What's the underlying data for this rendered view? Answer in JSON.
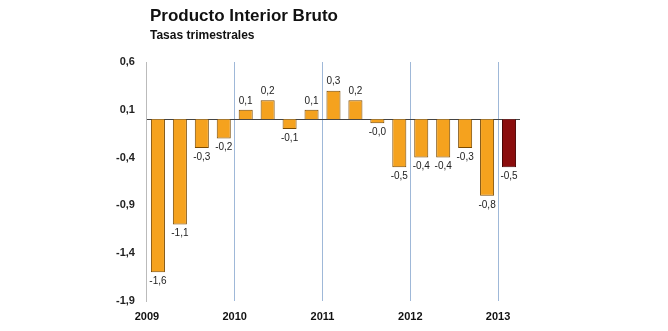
{
  "chart_data": {
    "type": "bar",
    "title": "Producto Interior Bruto",
    "subtitle": "Tasas trimestrales",
    "categories": [
      "2009",
      null,
      null,
      null,
      "2010",
      null,
      null,
      null,
      "2011",
      null,
      null,
      null,
      "2012",
      null,
      null,
      null,
      "2013"
    ],
    "values": [
      -1.6,
      -1.1,
      -0.3,
      -0.2,
      0.1,
      0.2,
      -0.1,
      0.1,
      0.3,
      0.2,
      -0.04,
      -0.5,
      -0.4,
      -0.4,
      -0.3,
      -0.8,
      -0.5
    ],
    "value_labels": [
      "-1,6",
      "-1,1",
      "-0,3",
      "-0,2",
      "0,1",
      "0,2",
      "-0,1",
      "0,1",
      "0,3",
      "0,2",
      "-0,0",
      "-0,5",
      "-0,4",
      "-0,4",
      "-0,3",
      "-0,8",
      "-0,5"
    ],
    "colors": [
      "#f5a21e",
      "#f5a21e",
      "#f5a21e",
      "#f5a21e",
      "#f5a21e",
      "#f5a21e",
      "#f5a21e",
      "#f5a21e",
      "#f5a21e",
      "#f5a21e",
      "#f5a21e",
      "#f5a21e",
      "#f5a21e",
      "#f5a21e",
      "#f5a21e",
      "#f5a21e",
      "#8b0d0d"
    ],
    "ylim": [
      -1.9,
      0.6
    ],
    "yticks": [
      {
        "value": -1.9,
        "label": "-1,9"
      },
      {
        "value": -1.4,
        "label": "-1,4"
      },
      {
        "value": -0.9,
        "label": "-0,9"
      },
      {
        "value": -0.4,
        "label": "-0,4"
      },
      {
        "value": 0.1,
        "label": "0,1"
      },
      {
        "value": 0.6,
        "label": "0,6"
      }
    ],
    "grid": "x",
    "data_labels": true
  }
}
